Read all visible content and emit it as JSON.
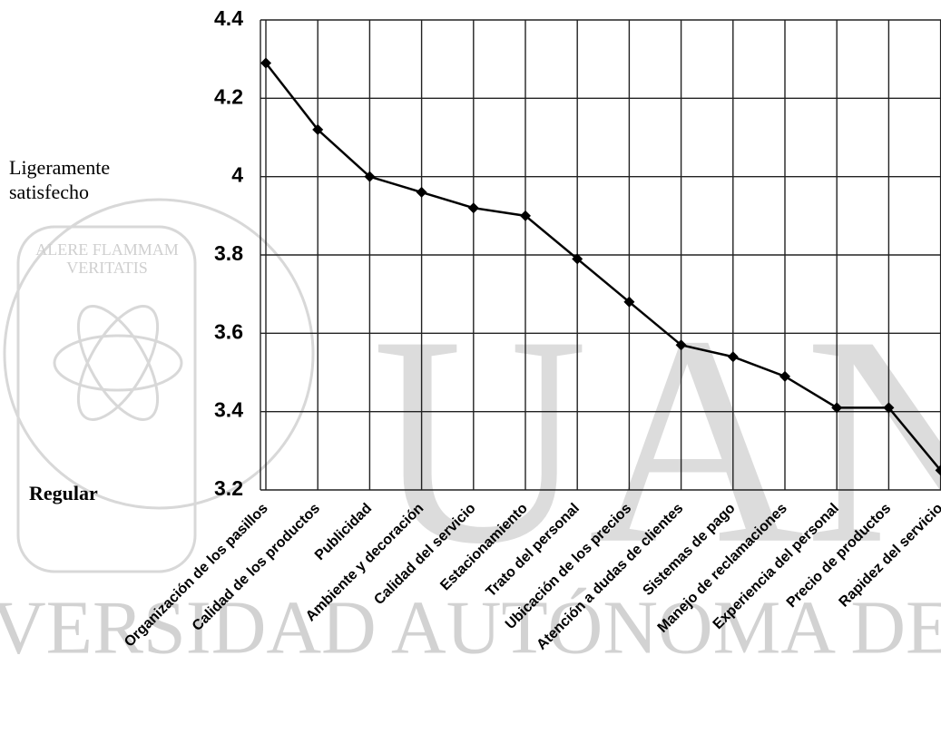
{
  "chart_data": {
    "type": "line",
    "categories": [
      "Organización de los pasillos",
      "Calidad de los productos",
      "Publicidad",
      "Ambiente y decoración",
      "Calidad del servicio",
      "Estacionamiento",
      "Trato del personal",
      "Ubicación de los precios",
      "Atención a dudas de clientes",
      "Sistemas de pago",
      "Manejo de reclamaciones",
      "Experiencia del personal",
      "Precio de productos",
      "Rapidez del servicio"
    ],
    "values": [
      4.29,
      4.12,
      4.0,
      3.96,
      3.92,
      3.9,
      3.79,
      3.68,
      3.57,
      3.54,
      3.49,
      3.41,
      3.41,
      3.25
    ],
    "color": "#000000",
    "ylim": [
      3.2,
      4.4
    ],
    "yticks": [
      3.2,
      3.4,
      3.6,
      3.8,
      4,
      4.2,
      4.4
    ],
    "grid": true,
    "annotations": [
      "Ligeramente",
      "satisfecho",
      "Regular"
    ],
    "watermark": [
      "ALERE FLAMMAM",
      "VERITATIS",
      "UAN",
      "VERSIDAD AUTÓNOMA DE NUEVO LE"
    ]
  }
}
